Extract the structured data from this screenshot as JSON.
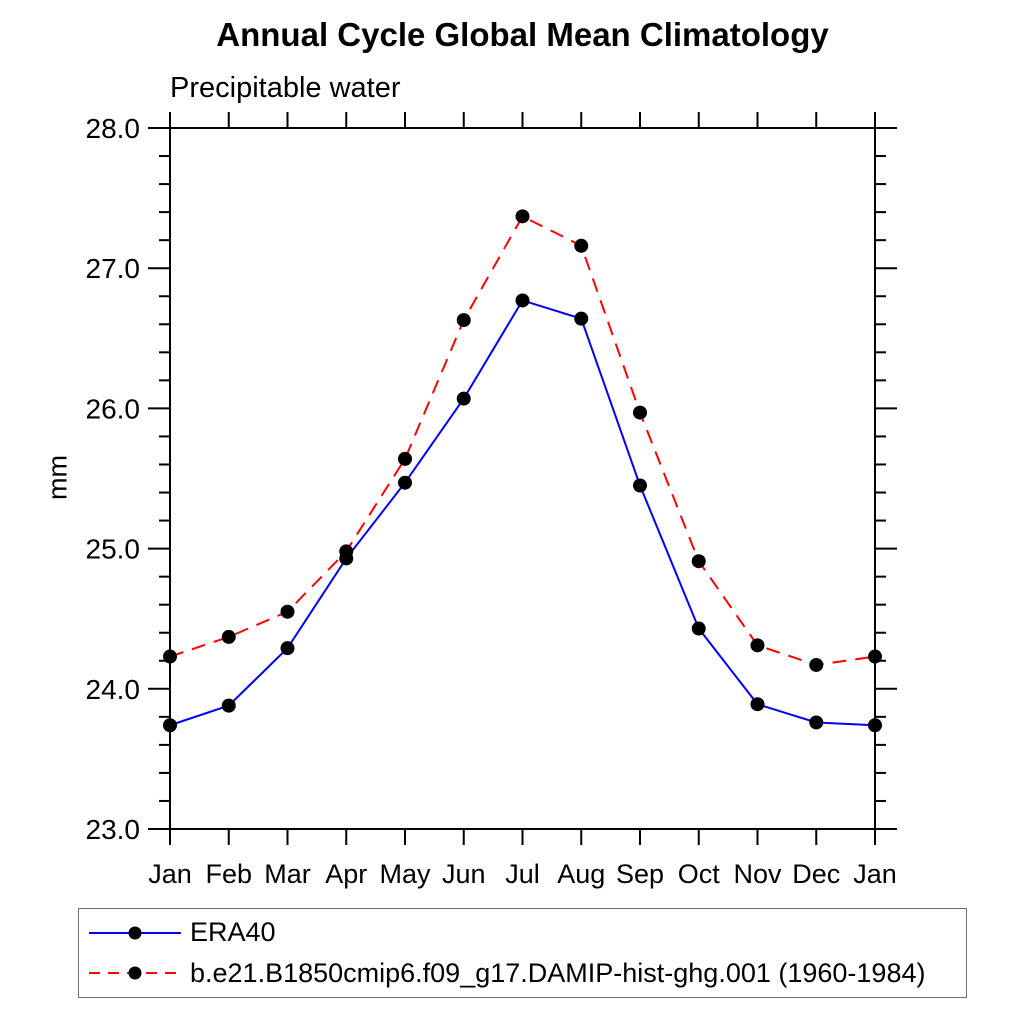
{
  "title": "Annual Cycle Global Mean Climatology",
  "subtitle": "Precipitable water",
  "ylabel": "mm",
  "colors": {
    "era40_line": "#0000ff",
    "ghg_line": "#ff0000",
    "marker": "#000000",
    "axis": "#000000",
    "legend_border": "#6e6e6e"
  },
  "chart_data": {
    "type": "line",
    "title": "Annual Cycle Global Mean Climatology",
    "subtitle": "Precipitable water",
    "xlabel": "",
    "ylabel": "mm",
    "categories": [
      "Jan",
      "Feb",
      "Mar",
      "Apr",
      "May",
      "Jun",
      "Jul",
      "Aug",
      "Sep",
      "Oct",
      "Nov",
      "Dec",
      "Jan"
    ],
    "ylim": [
      23.0,
      28.0
    ],
    "ytick_major": 1.0,
    "ytick_minor": 0.2,
    "ytick_labels": [
      "23.0",
      "24.0",
      "25.0",
      "26.0",
      "27.0",
      "28.0"
    ],
    "grid": false,
    "legend_position": "bottom-left-box",
    "series": [
      {
        "name": "ERA40",
        "color": "#0000ff",
        "style": "solid",
        "marker": "black-dot",
        "values": [
          23.74,
          23.88,
          24.29,
          24.93,
          25.47,
          26.07,
          26.77,
          26.64,
          25.45,
          24.43,
          23.89,
          23.76,
          23.74
        ]
      },
      {
        "name": "b.e21.B1850cmip6.f09_g17.DAMIP-hist-ghg.001 (1960-1984)",
        "color": "#ff0000",
        "style": "dashed",
        "marker": "black-dot",
        "values": [
          24.23,
          24.37,
          24.55,
          24.98,
          25.64,
          26.63,
          27.37,
          27.16,
          25.97,
          24.91,
          24.31,
          24.17,
          24.23
        ]
      }
    ]
  }
}
